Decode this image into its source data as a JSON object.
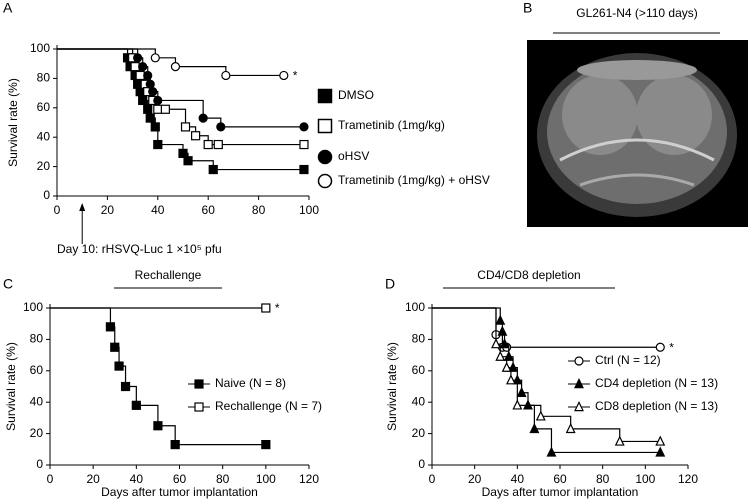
{
  "chart_data": [
    {
      "type": "step",
      "label": "A",
      "ylabel": "Survival rate (%)",
      "xlim": [
        0,
        100
      ],
      "xticks": [
        0,
        20,
        40,
        60,
        80,
        100
      ],
      "ylim": [
        0,
        100
      ],
      "yticks": [
        0,
        20,
        40,
        60,
        80,
        100
      ],
      "annotation": {
        "text": "Day 10: rHSVQ-Luc 1 ×10⁵ pfu",
        "x": 10
      },
      "series": [
        {
          "name": "DMSO",
          "marker": "square-filled",
          "color": "#000",
          "x": [
            0,
            28,
            29,
            31,
            32,
            33,
            34,
            36,
            37,
            39,
            40,
            50,
            52,
            62,
            98
          ],
          "values": [
            100,
            94,
            88,
            82,
            76,
            71,
            65,
            59,
            53,
            47,
            35,
            29,
            24,
            18,
            18
          ]
        },
        {
          "name": "Trametinib (1mg/kg)",
          "marker": "square-open",
          "color": "#000",
          "x": [
            0,
            30,
            31,
            33,
            35,
            36,
            38,
            40,
            43,
            51,
            55,
            60,
            64,
            98
          ],
          "values": [
            100,
            94,
            88,
            82,
            76,
            71,
            65,
            59,
            59,
            47,
            41,
            35,
            35,
            35
          ]
        },
        {
          "name": "oHSV",
          "marker": "circle-filled",
          "color": "#000",
          "x": [
            0,
            32,
            34,
            36,
            37,
            38,
            40,
            58,
            65,
            98
          ],
          "values": [
            100,
            94,
            88,
            82,
            76,
            71,
            65,
            53,
            47,
            47
          ]
        },
        {
          "name": "Trametinib (1mg/kg) + oHSV",
          "marker": "circle-open",
          "color": "#000",
          "annotation": "*",
          "x": [
            0,
            39,
            47,
            67,
            90
          ],
          "values": [
            100,
            94,
            88,
            82,
            82
          ]
        }
      ]
    },
    {
      "type": "image",
      "label": "B",
      "title": "GL261-N4 (>110 days)"
    },
    {
      "type": "step",
      "label": "C",
      "ylabel": "Survival rate (%)",
      "xlabel": "Days after tumor implantation",
      "bracket_label": "Rechallenge",
      "xlim": [
        0,
        120
      ],
      "xticks": [
        0,
        20,
        40,
        60,
        80,
        100,
        120
      ],
      "ylim": [
        0,
        100
      ],
      "yticks": [
        0,
        20,
        40,
        60,
        80,
        100
      ],
      "series": [
        {
          "name": "Naive (N = 8)",
          "marker": "square-filled",
          "color": "#000",
          "x": [
            0,
            28,
            30,
            32,
            35,
            40,
            50,
            58,
            100
          ],
          "values": [
            100,
            88,
            75,
            63,
            50,
            38,
            25,
            13,
            13
          ]
        },
        {
          "name": "Rechallenge (N = 7)",
          "marker": "square-open",
          "color": "#000",
          "annotation": "*",
          "x": [
            0,
            100
          ],
          "values": [
            100,
            100
          ]
        }
      ]
    },
    {
      "type": "step",
      "label": "D",
      "ylabel": "Survival rate (%)",
      "xlabel": "Days after tumor implantation",
      "bracket_label": "CD4/CD8 depletion",
      "xlim": [
        0,
        120
      ],
      "xticks": [
        0,
        20,
        40,
        60,
        80,
        100,
        120
      ],
      "ylim": [
        0,
        100
      ],
      "yticks": [
        0,
        20,
        40,
        60,
        80,
        100
      ],
      "series": [
        {
          "name": "Ctrl (N = 12)",
          "marker": "circle-open",
          "color": "#000",
          "annotation": "*",
          "x": [
            0,
            30,
            33,
            35,
            107
          ],
          "values": [
            100,
            83,
            75,
            75,
            75
          ]
        },
        {
          "name": "CD4 depletion (N = 13)",
          "marker": "triangle-filled",
          "color": "#000",
          "x": [
            0,
            32,
            33,
            34,
            36,
            38,
            40,
            42,
            45,
            48,
            56,
            107
          ],
          "values": [
            100,
            92,
            85,
            77,
            69,
            62,
            54,
            46,
            38,
            23,
            8,
            8
          ]
        },
        {
          "name": "CD8 depletion (N = 13)",
          "marker": "triangle-open",
          "color": "#000",
          "x": [
            0,
            30,
            32,
            35,
            37,
            40,
            51,
            65,
            88,
            107
          ],
          "values": [
            100,
            77,
            69,
            62,
            54,
            38,
            31,
            23,
            15,
            15
          ]
        }
      ]
    }
  ]
}
